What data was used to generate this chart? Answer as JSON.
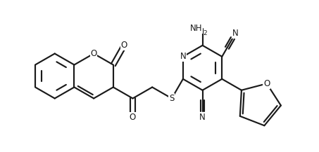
{
  "bg_color": "#ffffff",
  "line_color": "#1a1a1a",
  "line_width": 1.55,
  "font_size": 8.5,
  "xlim": [
    0.0,
    10.2
  ],
  "ylim": [
    0.3,
    5.0
  ],
  "fig_width": 4.53,
  "fig_height": 2.17,
  "ring_r": 0.72
}
